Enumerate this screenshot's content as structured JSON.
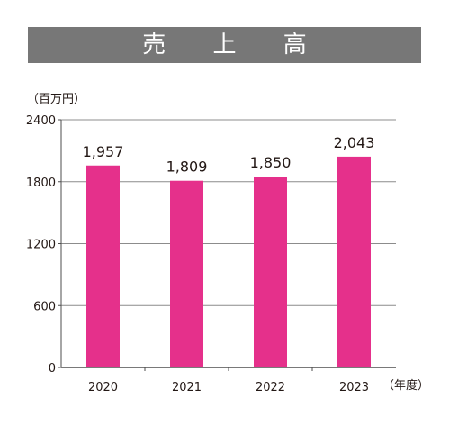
{
  "title": "売 上 高",
  "unit_label": "（百万円）",
  "x_unit_label": "（年度）",
  "colors": {
    "banner": "#777777",
    "bar": "#e5308b",
    "grid": "#8c8c8c",
    "axis": "#4d4d4d",
    "text": "#231815"
  },
  "chart_data": {
    "type": "bar",
    "title": "売 上 高",
    "xlabel": "（年度）",
    "ylabel": "（百万円）",
    "categories": [
      "2020",
      "2021",
      "2022",
      "2023"
    ],
    "values": [
      1957,
      1809,
      1850,
      2043
    ],
    "value_labels": [
      "1,957",
      "1,809",
      "1,850",
      "2,043"
    ],
    "ylim": [
      0,
      2400
    ],
    "yticks": [
      0,
      600,
      1200,
      1800,
      2400
    ],
    "ytick_labels": [
      "0",
      "600",
      "1200",
      "1800",
      "2400"
    ],
    "grid": true,
    "legend": "none"
  }
}
